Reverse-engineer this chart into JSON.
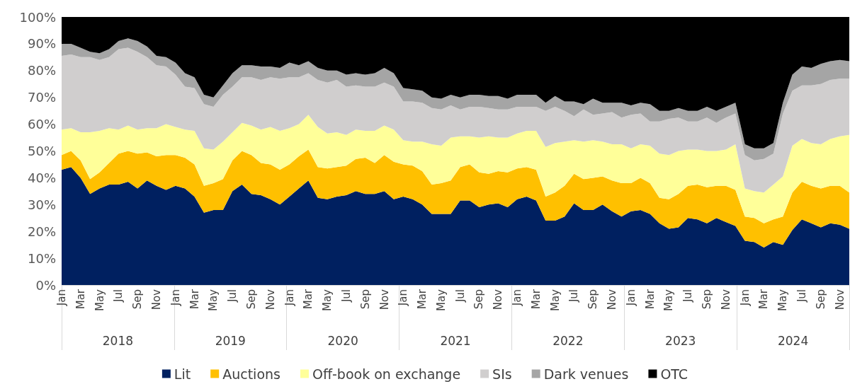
{
  "chart_data": {
    "type": "area",
    "stacked": true,
    "grid": false,
    "legend": "bottom",
    "categories": [
      "Jan",
      null,
      "Mar",
      null,
      "May",
      null,
      "Jul",
      null,
      "Sep",
      null,
      "Nov",
      null,
      "Jan",
      null,
      "Mar",
      null,
      "May",
      null,
      "Jul",
      null,
      "Sep",
      null,
      "Nov",
      null,
      "Jan",
      null,
      "Mar",
      null,
      "May",
      null,
      "Jul",
      null,
      "Sep",
      null,
      "Nov",
      null,
      "Jan",
      null,
      "Mar",
      null,
      "May",
      null,
      "Jul",
      null,
      "Sep",
      null,
      "Nov",
      null,
      "Jan",
      null,
      "Mar",
      null,
      "May",
      null,
      "Jul",
      null,
      "Sep",
      null,
      "Nov",
      null,
      "Jan",
      null,
      "Mar",
      null,
      "May",
      null,
      "Jul",
      null,
      "Sep",
      null,
      "Nov",
      null,
      "Jan",
      null,
      "Mar",
      null,
      "May",
      null,
      "Jul",
      null,
      "Sep",
      null,
      "Nov",
      null
    ],
    "annotations": [
      "2018",
      "2019",
      "2020",
      "2021",
      "2022",
      "2023",
      "2024"
    ],
    "ylim": [
      0,
      100
    ],
    "yticks": [
      {
        "value": 0,
        "label": "0%"
      },
      {
        "value": 10,
        "label": "10%"
      },
      {
        "value": 20,
        "label": "20%"
      },
      {
        "value": 30,
        "label": "30%"
      },
      {
        "value": 40,
        "label": "40%"
      },
      {
        "value": 50,
        "label": "50%"
      },
      {
        "value": 60,
        "label": "60%"
      },
      {
        "value": 70,
        "label": "70%"
      },
      {
        "value": 80,
        "label": "80%"
      },
      {
        "value": 90,
        "label": "90%"
      },
      {
        "value": 100,
        "label": "100%"
      }
    ],
    "series": [
      {
        "name": "Lit",
        "color": "#002060",
        "values": [
          43,
          44,
          40,
          34,
          36,
          37.5,
          37.5,
          38.5,
          36,
          39,
          37,
          35.5,
          37,
          36,
          33,
          27,
          28,
          28,
          35,
          37.5,
          34,
          33.5,
          32,
          30,
          33,
          36,
          39,
          32.5,
          32,
          33,
          33.5,
          35,
          34,
          34,
          35,
          32,
          33,
          32,
          30,
          26.5,
          26.5,
          26.5,
          31.5,
          31.5,
          29,
          30,
          30.5,
          29,
          32,
          33,
          31.5,
          24,
          24,
          25.5,
          30.5,
          28,
          28,
          30,
          27.5,
          25.5,
          27.5,
          28,
          26.5,
          23,
          21,
          21.5,
          25,
          24.5,
          23,
          25,
          23.5,
          22,
          16.5,
          16,
          14,
          16,
          15,
          20.5,
          24.5,
          23,
          21.5,
          23,
          22.5,
          21
        ]
      },
      {
        "name": "Auctions",
        "color": "#ffc000",
        "values": [
          5.5,
          6,
          6.5,
          5.5,
          6,
          8,
          11.5,
          11.5,
          13,
          10.5,
          11,
          13,
          11.5,
          11.5,
          12,
          10,
          10,
          11.5,
          11.5,
          12.5,
          14.5,
          12,
          13,
          13,
          12,
          12,
          11.5,
          11.5,
          11.5,
          11,
          11,
          12,
          13.5,
          11.5,
          13.5,
          14,
          12,
          12.5,
          12.5,
          11,
          11.5,
          12.5,
          12.5,
          13.5,
          13,
          11.5,
          12,
          13,
          11.5,
          11,
          11.5,
          9,
          10.5,
          11.5,
          11,
          11.5,
          12,
          10.5,
          11.5,
          12.5,
          10.5,
          12,
          11.5,
          9.5,
          11,
          12.5,
          12,
          13,
          13.5,
          12,
          13.5,
          13.5,
          9,
          9,
          9,
          8.5,
          10.5,
          14,
          14,
          14,
          14.5,
          14,
          14.5,
          13.5
        ]
      },
      {
        "name": "Off-book on exchange",
        "color": "#ffff99",
        "values": [
          9.5,
          8.5,
          10.5,
          17.5,
          15.5,
          13,
          9,
          9.5,
          9,
          9,
          10.5,
          11.5,
          10.5,
          10.5,
          12.5,
          14,
          12.5,
          14,
          10.5,
          10.5,
          11,
          12.5,
          14,
          14.5,
          13.5,
          12,
          13,
          15,
          13,
          13,
          11.5,
          11,
          10,
          12,
          11,
          12,
          9,
          9,
          11,
          15,
          14,
          16,
          11.5,
          10.5,
          13,
          14,
          12.5,
          13,
          13,
          13.5,
          14.5,
          18.5,
          18.5,
          16.5,
          12.5,
          14,
          14,
          13,
          13.5,
          14.5,
          13,
          12.5,
          14,
          16.5,
          16.5,
          16,
          13.5,
          13,
          13.5,
          13,
          13.5,
          17,
          10.5,
          10,
          11.5,
          13,
          15,
          17.5,
          16,
          16,
          16.5,
          17.5,
          18.5,
          21.5
        ]
      },
      {
        "name": "SIs",
        "color": "#d0cece",
        "values": [
          27.5,
          27.5,
          28,
          28,
          26.5,
          26.5,
          30,
          29,
          29,
          26.5,
          23.5,
          21.5,
          19.5,
          16,
          16,
          16.5,
          16,
          17.5,
          17,
          17,
          18,
          18.5,
          18.5,
          19.5,
          19,
          17.5,
          15.5,
          17.5,
          19,
          19.5,
          18,
          16.5,
          16.5,
          16.5,
          16,
          16,
          14.5,
          15,
          14.5,
          13.5,
          13.5,
          12,
          10,
          11,
          11.5,
          10.5,
          10.5,
          10.5,
          10,
          9,
          9,
          13.5,
          13.5,
          11.5,
          9,
          12,
          9.5,
          10.5,
          12,
          10,
          12.5,
          11.5,
          9,
          12,
          13.5,
          12.5,
          10.5,
          10.5,
          12.5,
          10.5,
          12,
          11.5,
          12.5,
          11.5,
          12.5,
          11.5,
          23.5,
          20.5,
          20,
          21.5,
          22.5,
          22,
          21.5,
          21
        ]
      },
      {
        "name": "Dark venues",
        "color": "#a5a5a5",
        "values": [
          4.5,
          4,
          3.5,
          2,
          2.5,
          3,
          3,
          3.5,
          4,
          4,
          3.5,
          3.5,
          4.5,
          5,
          4,
          3.5,
          3.5,
          3.5,
          5,
          4.5,
          4.5,
          5,
          4,
          4,
          5.5,
          4.5,
          4.5,
          4.5,
          4.5,
          3.5,
          4.5,
          4.5,
          4.5,
          5,
          5.5,
          5,
          5,
          4.5,
          4.5,
          4,
          4,
          4,
          4.5,
          4.5,
          4.5,
          4.5,
          5,
          4,
          4.5,
          4.5,
          4.5,
          3,
          4,
          3.5,
          5.5,
          2,
          6,
          4,
          3.5,
          5.5,
          3.5,
          4,
          6.5,
          4,
          3,
          3.5,
          4,
          4,
          4,
          4.5,
          4,
          4,
          4,
          4.5,
          4,
          4,
          4,
          6,
          7,
          6.5,
          7.5,
          7,
          7,
          6.5
        ]
      },
      {
        "name": "OTC",
        "color": "#000000",
        "values": [
          10,
          10,
          11.5,
          13,
          13.5,
          12,
          9,
          8,
          9,
          11,
          14.5,
          15,
          17,
          21,
          22.5,
          29,
          30,
          25.5,
          21,
          18,
          18,
          18.5,
          18.5,
          19,
          17,
          18,
          16.5,
          19,
          20,
          20,
          21.5,
          21,
          21.5,
          21,
          19,
          21,
          26.5,
          27,
          27.5,
          30,
          30.5,
          29,
          30,
          29,
          29,
          29.5,
          29.5,
          30.5,
          29,
          29,
          29,
          32,
          29.5,
          31.5,
          31.5,
          32.5,
          30.5,
          32,
          32,
          32,
          33,
          32,
          32.5,
          35,
          35,
          34,
          35,
          35,
          33.5,
          35,
          33.5,
          32,
          47.5,
          49,
          49,
          47,
          32,
          21.5,
          18.5,
          19,
          17.5,
          16.5,
          16,
          16.5
        ]
      }
    ]
  }
}
